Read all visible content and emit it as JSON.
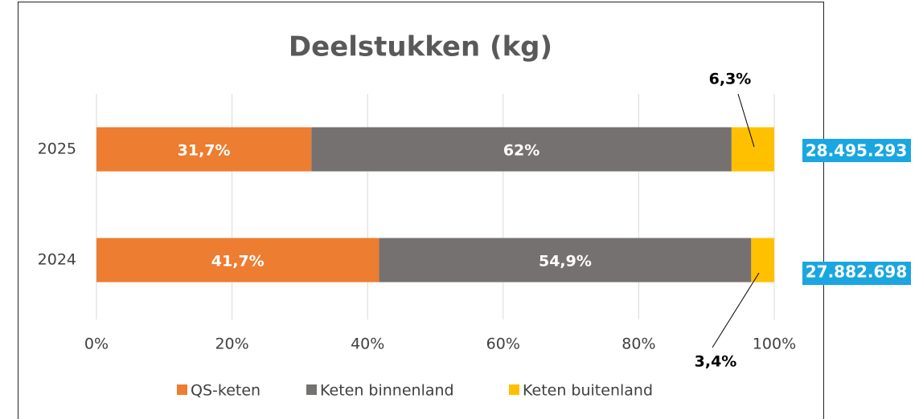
{
  "chart_data": {
    "type": "bar",
    "stacked": true,
    "orientation": "horizontal",
    "title": "Deelstukken (kg)",
    "categories": [
      "2025",
      "2024"
    ],
    "series": [
      {
        "name": "QS-keten",
        "color": "#ed7d31",
        "values": [
          31.7,
          41.7
        ],
        "value_labels": [
          "31,7%",
          "41,7%"
        ]
      },
      {
        "name": "Keten binnenland",
        "color": "#767171",
        "values": [
          62,
          54.9
        ],
        "value_labels": [
          "62%",
          "54,9%"
        ]
      },
      {
        "name": "Keten buitenland",
        "color": "#ffc000",
        "values": [
          6.3,
          3.4
        ],
        "value_labels": [
          "6,3%",
          "3,4%"
        ]
      }
    ],
    "total_labels": [
      "28.495.293",
      "27.882.698"
    ],
    "xlim": [
      0,
      100
    ],
    "xticks": [
      {
        "value": 0,
        "label": "0%"
      },
      {
        "value": 20,
        "label": "20%"
      },
      {
        "value": 40,
        "label": "40%"
      },
      {
        "value": 60,
        "label": "60%"
      },
      {
        "value": 80,
        "label": "80%"
      },
      {
        "value": 100,
        "label": "100%"
      }
    ],
    "grid": true,
    "legend": "bottom"
  }
}
